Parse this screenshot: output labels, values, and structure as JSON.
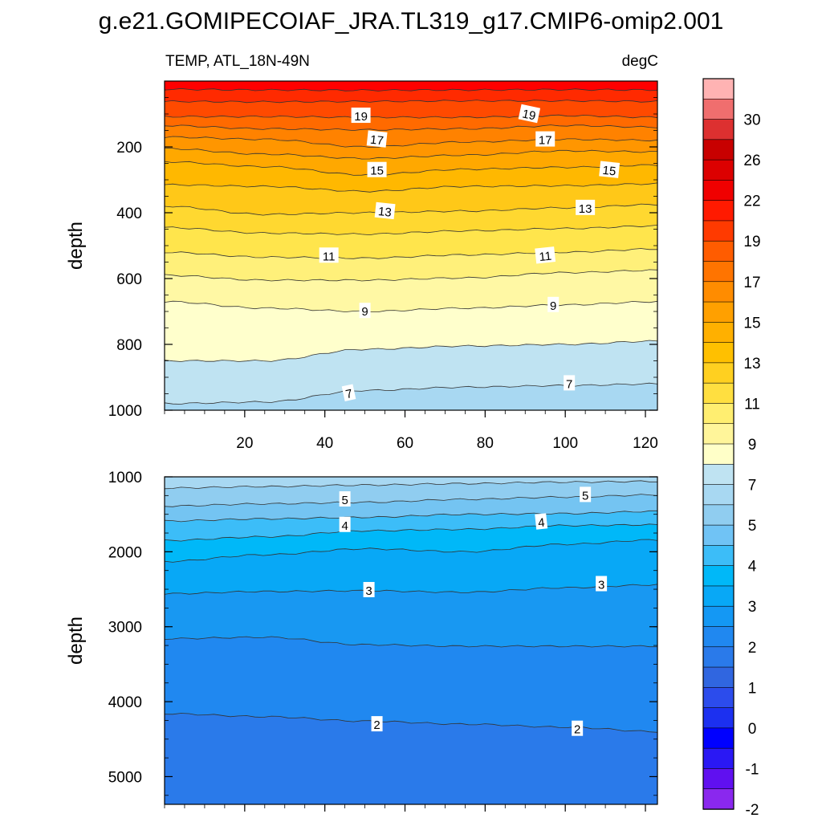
{
  "title": "g.e21.GOMIPECOIAF_JRA.TL319_g17.CMIP6-omip2.001",
  "subtitle_left": "TEMP, ATL_18N-49N",
  "subtitle_right": "degC",
  "chart_data": [
    {
      "type": "contour",
      "panel": "upper",
      "xlabel": "",
      "ylabel": "depth",
      "xlim": [
        0,
        123
      ],
      "ylim": [
        1000,
        0
      ],
      "x_ticks": [
        20,
        40,
        60,
        80,
        100,
        120
      ],
      "y_ticks": [
        200,
        400,
        600,
        800,
        1000
      ],
      "isotherms": [
        {
          "level": 21,
          "depth": [
            25,
            27,
            28,
            27,
            26,
            27
          ]
        },
        {
          "level": 20,
          "depth": [
            62,
            63,
            62,
            60,
            60,
            62
          ]
        },
        {
          "level": 19,
          "depth": [
            108,
            108,
            110,
            110,
            105,
            110
          ]
        },
        {
          "level": 18,
          "depth": [
            135,
            145,
            148,
            145,
            135,
            140
          ]
        },
        {
          "level": 17,
          "depth": [
            170,
            177,
            200,
            185,
            177,
            180
          ]
        },
        {
          "level": 16,
          "depth": [
            205,
            222,
            235,
            225,
            212,
            215
          ]
        },
        {
          "level": 15,
          "depth": [
            245,
            260,
            285,
            268,
            262,
            255
          ]
        },
        {
          "level": 14,
          "depth": [
            315,
            320,
            335,
            320,
            318,
            312
          ]
        },
        {
          "level": 13,
          "depth": [
            380,
            405,
            400,
            395,
            385,
            375
          ]
        },
        {
          "level": 12,
          "depth": [
            445,
            462,
            465,
            455,
            448,
            440
          ]
        },
        {
          "level": 11,
          "depth": [
            520,
            535,
            538,
            528,
            520,
            510
          ]
        },
        {
          "level": 10,
          "depth": [
            590,
            605,
            605,
            598,
            582,
            575
          ]
        },
        {
          "level": 9,
          "depth": [
            670,
            690,
            700,
            690,
            680,
            670
          ]
        },
        {
          "level": 8,
          "depth": [
            850,
            850,
            815,
            805,
            800,
            790
          ]
        },
        {
          "level": 7,
          "depth": [
            980,
            975,
            940,
            930,
            925,
            920
          ]
        }
      ],
      "labels": [
        {
          "text": "19",
          "x": 49,
          "depth": 105,
          "rot": 0
        },
        {
          "text": "19",
          "x": 91,
          "depth": 100,
          "rot": 12
        },
        {
          "text": "17",
          "x": 53,
          "depth": 177,
          "rot": 6
        },
        {
          "text": "17",
          "x": 95,
          "depth": 177,
          "rot": 0
        },
        {
          "text": "15",
          "x": 53,
          "depth": 270,
          "rot": 0
        },
        {
          "text": "15",
          "x": 111,
          "depth": 270,
          "rot": 6
        },
        {
          "text": "13",
          "x": 55,
          "depth": 395,
          "rot": 6
        },
        {
          "text": "13",
          "x": 105,
          "depth": 385,
          "rot": 0
        },
        {
          "text": "11",
          "x": 41,
          "depth": 530,
          "rot": 0
        },
        {
          "text": "11",
          "x": 95,
          "depth": 530,
          "rot": -6
        },
        {
          "text": "9",
          "x": 50,
          "depth": 698,
          "rot": 0
        },
        {
          "text": "9",
          "x": 97,
          "depth": 680,
          "rot": 0
        },
        {
          "text": "7",
          "x": 46,
          "depth": 948,
          "rot": -12
        },
        {
          "text": "7",
          "x": 101,
          "depth": 918,
          "rot": 0
        }
      ]
    },
    {
      "type": "contour",
      "panel": "lower",
      "xlabel": "",
      "ylabel": "depth",
      "xlim": [
        0,
        123
      ],
      "ylim": [
        5370,
        1000
      ],
      "x_ticks": [
        20,
        40,
        60,
        80,
        100,
        120
      ],
      "y_ticks": [
        1000,
        2000,
        3000,
        4000,
        5000
      ],
      "isotherms": [
        {
          "level": 6,
          "depth": [
            1150,
            1130,
            1110,
            1090,
            1070,
            1060
          ]
        },
        {
          "level": 5,
          "depth": [
            1390,
            1360,
            1340,
            1300,
            1270,
            1240
          ]
        },
        {
          "level": 4.5,
          "depth": [
            1590,
            1560,
            1540,
            1500,
            1490,
            1460
          ]
        },
        {
          "level": 4,
          "depth": [
            1850,
            1800,
            1720,
            1700,
            1650,
            1640
          ]
        },
        {
          "level": 3.5,
          "depth": [
            2130,
            2040,
            1960,
            2000,
            1900,
            1840
          ]
        },
        {
          "level": 3,
          "depth": [
            2560,
            2530,
            2520,
            2540,
            2480,
            2440
          ]
        },
        {
          "level": 2.5,
          "depth": [
            3160,
            3140,
            3240,
            3260,
            3260,
            3260
          ]
        },
        {
          "level": 2,
          "depth": [
            4160,
            4200,
            4260,
            4300,
            4340,
            4400
          ]
        }
      ],
      "labels": [
        {
          "text": "5",
          "x": 45,
          "depth": 1300,
          "rot": 0
        },
        {
          "text": "5",
          "x": 105,
          "depth": 1240,
          "rot": 0
        },
        {
          "text": "4",
          "x": 45,
          "depth": 1640,
          "rot": 0
        },
        {
          "text": "4",
          "x": 94,
          "depth": 1600,
          "rot": -6
        },
        {
          "text": "3",
          "x": 51,
          "depth": 2510,
          "rot": 0
        },
        {
          "text": "3",
          "x": 109,
          "depth": 2430,
          "rot": 0
        },
        {
          "text": "2",
          "x": 53,
          "depth": 4300,
          "rot": 0
        },
        {
          "text": "2",
          "x": 103,
          "depth": 4360,
          "rot": 0
        }
      ]
    }
  ],
  "colorbar": {
    "labels": [
      "30",
      "26",
      "22",
      "19",
      "17",
      "15",
      "13",
      "11",
      "9",
      "7",
      "5",
      "4",
      "3",
      "2",
      "1",
      "0",
      "-1",
      "-2"
    ],
    "colors": [
      "#ffb3b3",
      "#f06e6e",
      "#dd3030",
      "#c80000",
      "#dc0000",
      "#f00000",
      "#ff1a00",
      "#ff3a00",
      "#ff5c00",
      "#ff7400",
      "#ff8c00",
      "#ffa000",
      "#ffb000",
      "#ffc000",
      "#ffd020",
      "#ffdf40",
      "#ffee70",
      "#fff59a",
      "#ffffc8",
      "#bfe3f2",
      "#a8d8f2",
      "#90cdf0",
      "#70c3f5",
      "#3cbdf8",
      "#00b8f8",
      "#08a8f6",
      "#1498f4",
      "#2088f0",
      "#2a7aea",
      "#3066e0",
      "#2c4cec",
      "#1c30f0",
      "#0000ff",
      "#2a18f4",
      "#6010f0",
      "#8a28ee"
    ]
  }
}
